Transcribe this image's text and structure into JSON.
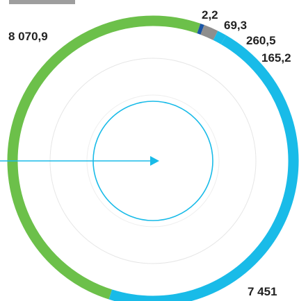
{
  "colors": {
    "green": "#6cc04a",
    "cyan": "#19bbe8",
    "navy": "#163a70",
    "blue": "#1a56a6",
    "gray": "#8e8e8e",
    "grid": "#e3e3e3",
    "top_tab": "#9e9e9e"
  },
  "chart_data": {
    "type": "pie",
    "style": "donut-ring",
    "slices": [
      {
        "value": 8070.9,
        "label": "8 070,9",
        "color": "#6cc04a"
      },
      {
        "value": 2.2,
        "label": "2,2",
        "color": "#163a70"
      },
      {
        "value": 69.3,
        "label": "69,3",
        "color": "#1a56a6"
      },
      {
        "value": 260.5,
        "label": "260,5",
        "color": "#8e8e8e"
      },
      {
        "value": 165.2,
        "label": "165,2",
        "color": "#19bbe8"
      },
      {
        "value": 7451,
        "label": "7 451",
        "color": "#19bbe8"
      }
    ],
    "center_marker": {
      "type": "arrow-and-circle",
      "color": "#19bbe8"
    },
    "gridlines": true
  }
}
